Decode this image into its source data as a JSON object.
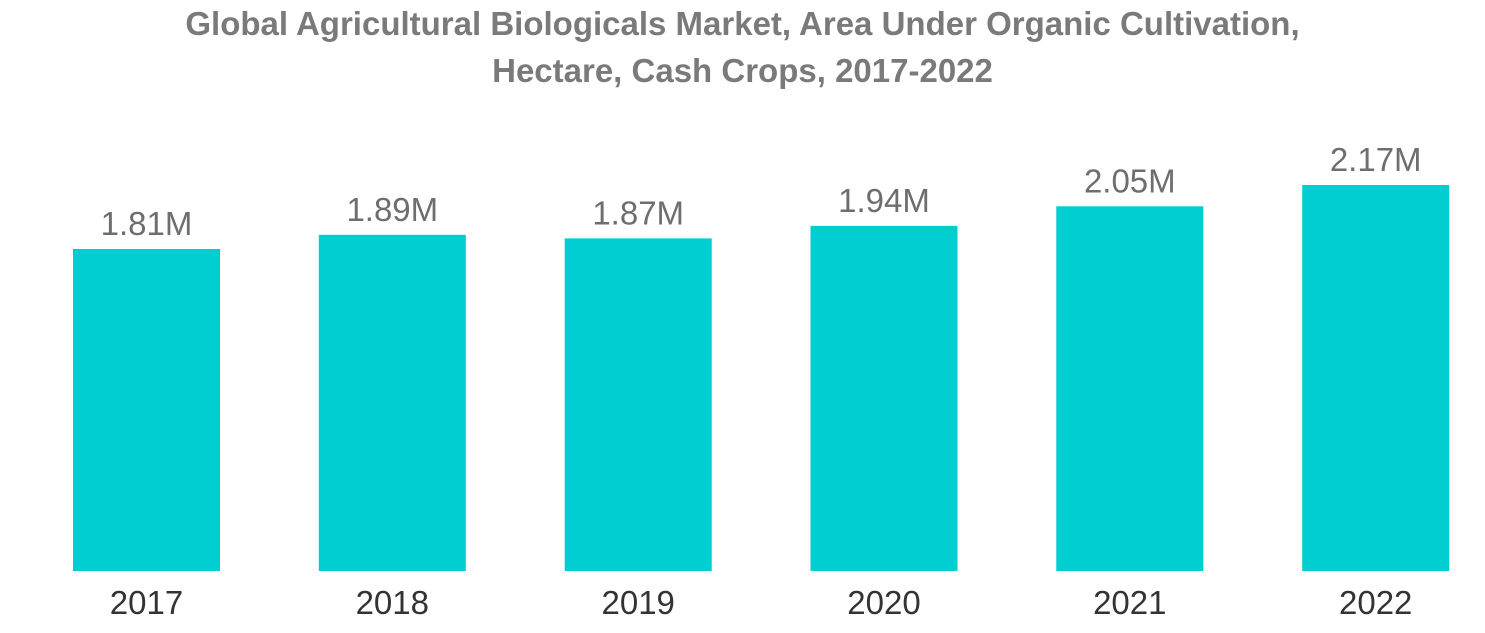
{
  "chart_data": {
    "type": "bar",
    "title_lines": [
      "Global Agricultural Biologicals Market, Area Under Organic Cultivation,",
      "Hectare, Cash Crops, 2017-2022"
    ],
    "categories": [
      "2017",
      "2018",
      "2019",
      "2020",
      "2021",
      "2022"
    ],
    "values": [
      1.81,
      1.89,
      1.87,
      1.94,
      2.05,
      2.17
    ],
    "value_labels": [
      "1.81M",
      "1.89M",
      "1.87M",
      "1.94M",
      "2.05M",
      "2.17M"
    ],
    "unit": "M hectares",
    "xlabel": "",
    "ylabel": "",
    "ylim": [
      0,
      2.17
    ],
    "grid": false,
    "legend": "none",
    "bar_color": "#00CED1"
  }
}
